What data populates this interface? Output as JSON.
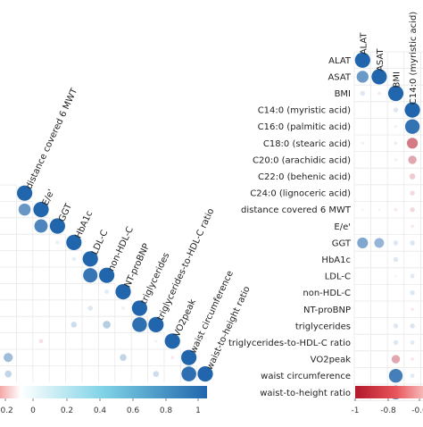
{
  "chart_data": [
    {
      "type": "heatmap",
      "title": "",
      "variables_shown_on_diagonal": [
        "distance covered 6 MWT",
        "E/e'",
        "GGT",
        "HbA1c",
        "LDL-C",
        "non-HDL-C",
        "NT-proBNP",
        "triglycerides",
        "triglycerides-to-HDL-C ratio",
        "VO2peak",
        "waist circumference",
        "waist-to-height ratio"
      ],
      "colorbar": {
        "ticks": [
          "-0.2",
          "0",
          "0.2",
          "0.4",
          "0.6",
          "0.8",
          "1"
        ],
        "colors": [
          "#b2182b",
          "#ffffff",
          "#2166ac"
        ]
      },
      "cells": [
        {
          "row": "E/e'",
          "col": "distance covered 6 MWT",
          "r": 0.62
        },
        {
          "row": "GGT",
          "col": "E/e'",
          "r": 0.75
        },
        {
          "row": "HbA1c",
          "col": "GGT",
          "r": 0.06
        },
        {
          "row": "LDL-C",
          "col": "HbA1c",
          "r": 0.07
        },
        {
          "row": "non-HDL-C",
          "col": "LDL-C",
          "r": 0.88
        },
        {
          "row": "NT-proBNP",
          "col": "non-HDL-C",
          "r": 0.08
        },
        {
          "row": "triglycerides",
          "col": "NT-proBNP",
          "r": 0.05
        },
        {
          "row": "triglycerides",
          "col": "LDL-C",
          "r": 0.1
        },
        {
          "row": "triglycerides-to-HDL-C ratio",
          "col": "triglycerides",
          "r": 0.92
        },
        {
          "row": "triglycerides-to-HDL-C ratio",
          "col": "non-HDL-C",
          "r": 0.25
        },
        {
          "row": "triglycerides-to-HDL-C ratio",
          "col": "HbA1c",
          "r": 0.15
        },
        {
          "row": "VO2peak",
          "col": "triglycerides-to-HDL-C ratio",
          "r": 0.04
        },
        {
          "row": "VO2peak",
          "col": "E/e'",
          "r": -0.08
        },
        {
          "row": "waist circumference",
          "col": "VO2peak",
          "r": -0.05
        },
        {
          "row": "waist circumference",
          "col": "NT-proBNP",
          "r": 0.2
        },
        {
          "row": "waist-to-height ratio",
          "col": "waist circumference",
          "r": 0.93
        },
        {
          "row": "waist-to-height ratio",
          "col": "triglycerides-to-HDL-C ratio",
          "r": 0.15
        }
      ]
    },
    {
      "type": "heatmap",
      "title": "",
      "row_labels": [
        "ALAT",
        "ASAT",
        "BMI",
        "C14:0 (myristic acid)",
        "C16:0 (palmitic acid)",
        "C18:0 (stearic acid)",
        "C20:0 (arachidic acid)",
        "C22:0 (behenic acid)",
        "C24:0 (lignoceric acid)",
        "distance covered 6 MWT",
        "E/e'",
        "GGT",
        "HbA1c",
        "LDL-C",
        "non-HDL-C",
        "NT-proBNP",
        "triglycerides",
        "triglycerides-to-HDL-C ratio",
        "VO2peak",
        "waist circumference",
        "waist-to-height ratio"
      ],
      "column_labels": [
        "ALAT",
        "ASAT",
        "BMI",
        "C14:0 (myristic acid)"
      ],
      "colorbar": {
        "ticks": [
          "-1",
          "-0.8",
          "-0.6"
        ],
        "colors": [
          "#b2182b",
          "#ffffff"
        ]
      },
      "cells": [
        {
          "row": "ALAT",
          "col": "ALAT",
          "r": 1
        },
        {
          "row": "ASAT",
          "col": "ALAT",
          "r": 0.6
        },
        {
          "row": "ASAT",
          "col": "ASAT",
          "r": 1
        },
        {
          "row": "BMI",
          "col": "ALAT",
          "r": 0.1
        },
        {
          "row": "BMI",
          "col": "ASAT",
          "r": -0.05
        },
        {
          "row": "BMI",
          "col": "BMI",
          "r": 1
        },
        {
          "row": "C14:0 (myristic acid)",
          "col": "BMI",
          "r": 0.1
        },
        {
          "row": "C14:0 (myristic acid)",
          "col": "C14:0 (myristic acid)",
          "r": 1
        },
        {
          "row": "C16:0 (palmitic acid)",
          "col": "BMI",
          "r": 0.04
        },
        {
          "row": "C16:0 (palmitic acid)",
          "col": "C14:0 (myristic acid)",
          "r": 0.9
        },
        {
          "row": "C18:0 (stearic acid)",
          "col": "ALAT",
          "r": -0.04
        },
        {
          "row": "C18:0 (stearic acid)",
          "col": "BMI",
          "r": -0.05
        },
        {
          "row": "C18:0 (stearic acid)",
          "col": "C14:0 (myristic acid)",
          "r": -0.5
        },
        {
          "row": "C20:0 (arachidic acid)",
          "col": "BMI",
          "r": -0.04
        },
        {
          "row": "C20:0 (arachidic acid)",
          "col": "C14:0 (myristic acid)",
          "r": -0.3
        },
        {
          "row": "C22:0 (behenic acid)",
          "col": "C14:0 (myristic acid)",
          "r": -0.15
        },
        {
          "row": "C24:0 (lignoceric acid)",
          "col": "C14:0 (myristic acid)",
          "r": -0.1
        },
        {
          "row": "distance covered 6 MWT",
          "col": "ALAT",
          "r": -0.03
        },
        {
          "row": "distance covered 6 MWT",
          "col": "ASAT",
          "r": -0.03
        },
        {
          "row": "distance covered 6 MWT",
          "col": "BMI",
          "r": -0.05
        },
        {
          "row": "distance covered 6 MWT",
          "col": "C14:0 (myristic acid)",
          "r": -0.1
        },
        {
          "row": "E/e'",
          "col": "C14:0 (myristic acid)",
          "r": -0.05
        },
        {
          "row": "GGT",
          "col": "ALAT",
          "r": 0.5
        },
        {
          "row": "GGT",
          "col": "ASAT",
          "r": 0.4
        },
        {
          "row": "GGT",
          "col": "BMI",
          "r": 0.1
        },
        {
          "row": "GGT",
          "col": "C14:0 (myristic acid)",
          "r": 0.1
        },
        {
          "row": "HbA1c",
          "col": "BMI",
          "r": 0.1
        },
        {
          "row": "LDL-C",
          "col": "BMI",
          "r": -0.03
        },
        {
          "row": "LDL-C",
          "col": "C14:0 (myristic acid)",
          "r": 0.08
        },
        {
          "row": "non-HDL-C",
          "col": "C14:0 (myristic acid)",
          "r": 0.1
        },
        {
          "row": "NT-proBNP",
          "col": "C14:0 (myristic acid)",
          "r": -0.05
        },
        {
          "row": "triglycerides",
          "col": "BMI",
          "r": 0.1
        },
        {
          "row": "triglycerides",
          "col": "C14:0 (myristic acid)",
          "r": 0.1
        },
        {
          "row": "triglycerides-to-HDL-C ratio",
          "col": "BMI",
          "r": 0.1
        },
        {
          "row": "triglycerides-to-HDL-C ratio",
          "col": "C14:0 (myristic acid)",
          "r": 0.08
        },
        {
          "row": "VO2peak",
          "col": "BMI",
          "r": -0.3
        },
        {
          "row": "VO2peak",
          "col": "C14:0 (myristic acid)",
          "r": -0.05
        },
        {
          "row": "waist circumference",
          "col": "BMI",
          "r": 0.8
        },
        {
          "row": "waist circumference",
          "col": "C14:0 (myristic acid)",
          "r": 0.08
        },
        {
          "row": "waist-to-height ratio",
          "col": "BMI",
          "r": 0.8
        },
        {
          "row": "waist-to-height ratio",
          "col": "C14:0 (myristic acid)",
          "r": 0.08
        }
      ]
    }
  ]
}
